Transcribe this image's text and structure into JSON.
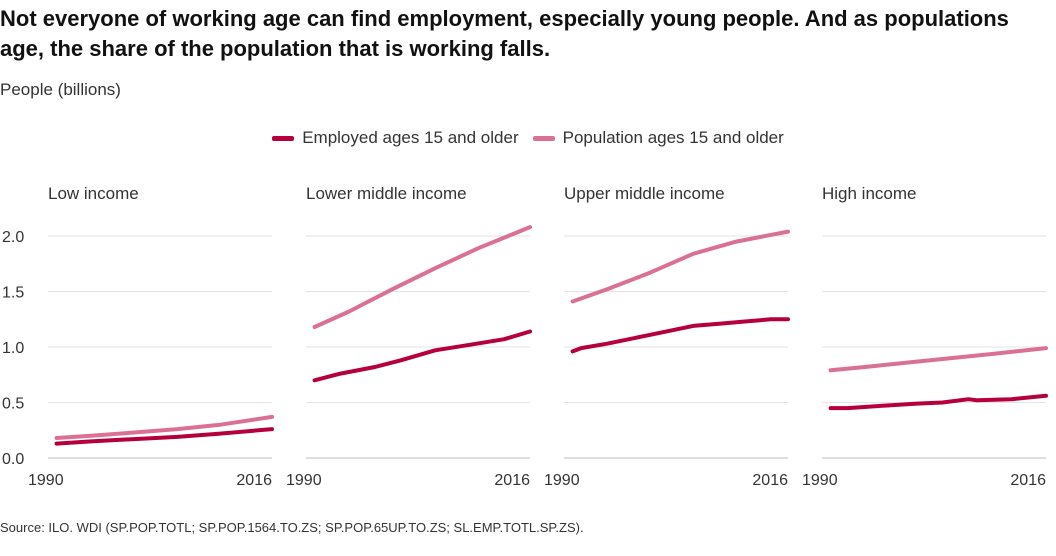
{
  "title": "Not everyone of working age can find employment, especially young people. And as populations age, the share of the population that is working falls.",
  "unit_label": "People (billions)",
  "source": "Source: ILO. WDI (SP.POP.TOTL; SP.POP.1564.TO.ZS; SP.POP.65UP.TO.ZS; SL.EMP.TOTL.SP.ZS).",
  "colors": {
    "employed": "#b5003b",
    "population": "#db7095",
    "grid": "#e3e3e3"
  },
  "chart_data": {
    "type": "line",
    "ylim": [
      0,
      2.0
    ],
    "y_ticks": [
      "0.0",
      "0.5",
      "1.0",
      "1.5",
      "2.0"
    ],
    "x_tick_labels": [
      "1990",
      "2016"
    ],
    "x_range": [
      1990,
      2016
    ],
    "grid": true,
    "legend_position": "top-center",
    "series_names": [
      "Employed ages 15 and older",
      "Population ages 15 and older"
    ],
    "panels": [
      {
        "name": "Low income",
        "series": [
          {
            "name": "Employed ages 15 and older",
            "x": [
              1991,
              1995,
              2000,
              2005,
              2010,
              2016
            ],
            "y": [
              0.13,
              0.15,
              0.17,
              0.19,
              0.22,
              0.26
            ]
          },
          {
            "name": "Population ages 15 and older",
            "x": [
              1991,
              1995,
              2000,
              2005,
              2010,
              2016
            ],
            "y": [
              0.18,
              0.2,
              0.23,
              0.26,
              0.3,
              0.37
            ]
          }
        ]
      },
      {
        "name": "Lower middle income",
        "series": [
          {
            "name": "Employed ages 15 and older",
            "x": [
              1991,
              1994,
              1998,
              2001,
              2005,
              2009,
              2013,
              2016
            ],
            "y": [
              0.7,
              0.76,
              0.82,
              0.88,
              0.97,
              1.02,
              1.07,
              1.14
            ]
          },
          {
            "name": "Population ages 15 and older",
            "x": [
              1991,
              1995,
              2000,
              2005,
              2010,
              2016
            ],
            "y": [
              1.18,
              1.32,
              1.52,
              1.71,
              1.89,
              2.08
            ]
          }
        ]
      },
      {
        "name": "Upper middle income",
        "series": [
          {
            "name": "Employed ages 15 and older",
            "x": [
              1991,
              1992,
              1995,
              2000,
              2005,
              2008,
              2011,
              2014,
              2016
            ],
            "y": [
              0.96,
              0.99,
              1.03,
              1.11,
              1.19,
              1.21,
              1.23,
              1.25,
              1.25
            ]
          },
          {
            "name": "Population ages 15 and older",
            "x": [
              1991,
              1995,
              2000,
              2005,
              2010,
              2016
            ],
            "y": [
              1.41,
              1.52,
              1.67,
              1.84,
              1.95,
              2.04
            ]
          }
        ]
      },
      {
        "name": "High income",
        "series": [
          {
            "name": "Employed ages 15 and older",
            "x": [
              1991,
              1993,
              1997,
              2001,
              2004,
              2007,
              2008,
              2012,
              2016
            ],
            "y": [
              0.45,
              0.45,
              0.47,
              0.49,
              0.5,
              0.53,
              0.52,
              0.53,
              0.56
            ]
          },
          {
            "name": "Population ages 15 and older",
            "x": [
              1991,
              1995,
              2000,
              2005,
              2010,
              2016
            ],
            "y": [
              0.79,
              0.82,
              0.86,
              0.9,
              0.94,
              0.99
            ]
          }
        ]
      }
    ]
  }
}
